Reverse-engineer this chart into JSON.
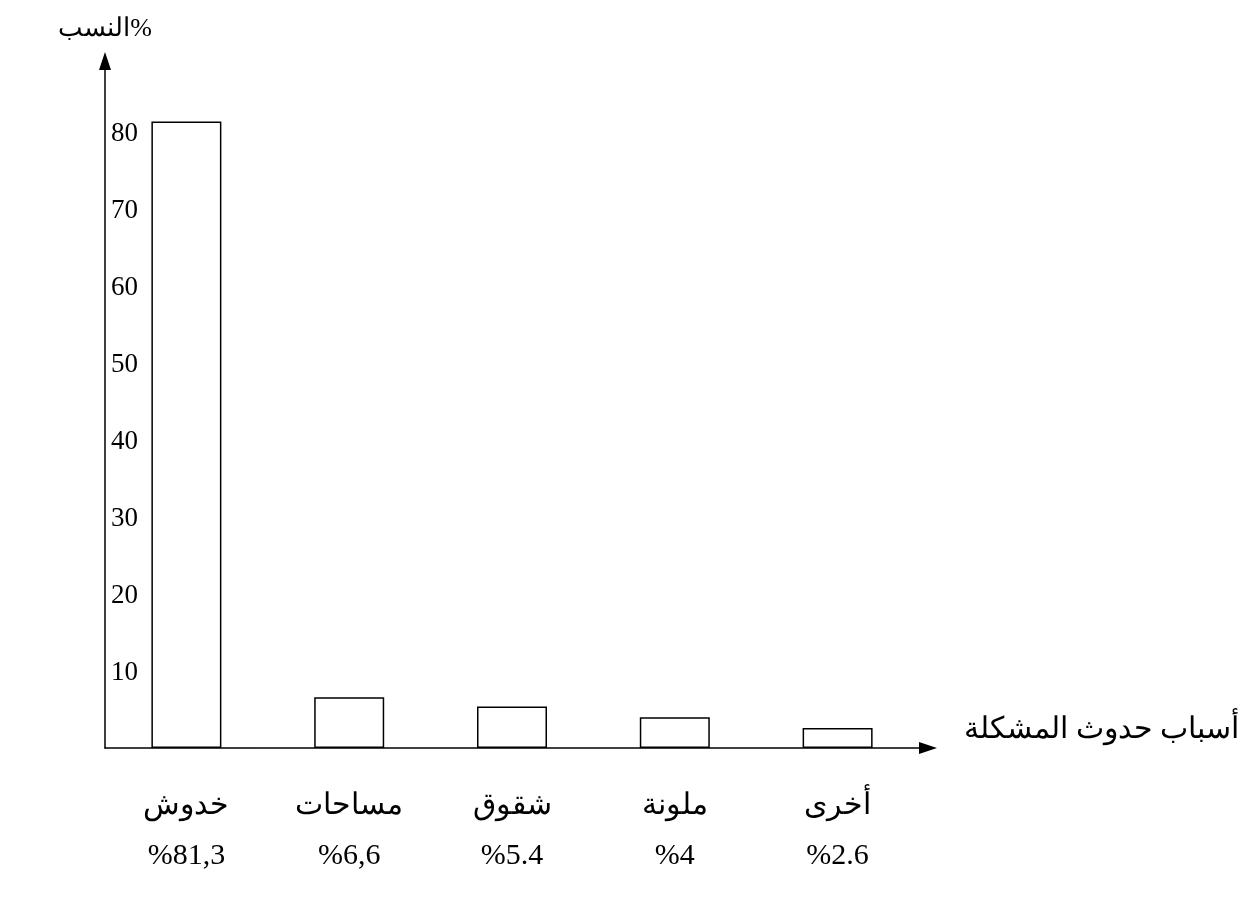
{
  "chart_data": {
    "type": "bar",
    "xlabel": "أسباب حدوث المشكلة",
    "ylabel": "النسب%",
    "categories": [
      "خدوش",
      "مساحات",
      "شقوق",
      "ملونة",
      "أخرى"
    ],
    "values": [
      81.3,
      6.6,
      5.4,
      4,
      2.6
    ],
    "value_labels": [
      "%81,3",
      "%6,6",
      "%5.4",
      "%4",
      "%2.6"
    ],
    "color": "#ffffff",
    "ylim": [
      0,
      88
    ],
    "yticks": [
      10,
      20,
      30,
      40,
      50,
      60,
      70,
      80
    ],
    "grid": false
  }
}
